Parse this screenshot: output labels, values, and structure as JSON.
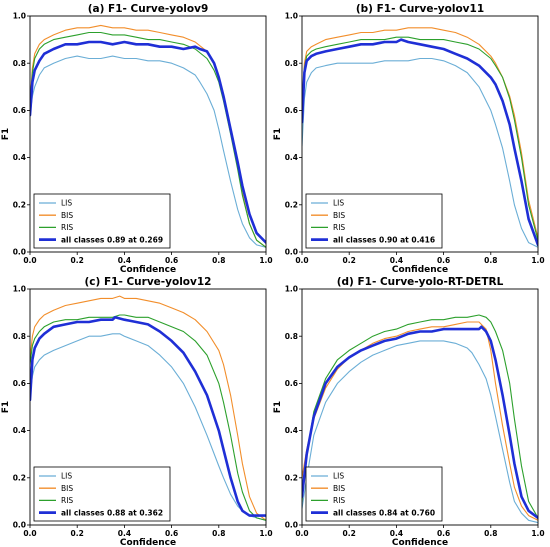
{
  "chart_data": [
    {
      "type": "line",
      "title": "(a) F1- Curve-yolov9",
      "xlabel": "Confidence",
      "ylabel": "F1",
      "xlim": [
        0,
        1
      ],
      "ylim": [
        0,
        1
      ],
      "xticks": [
        "0.0",
        "0.2",
        "0.4",
        "0.6",
        "0.8",
        "1.0"
      ],
      "yticks": [
        "0.0",
        "0.2",
        "0.4",
        "0.6",
        "0.8",
        "1.0"
      ],
      "legend_position": "lower-left",
      "series": [
        {
          "name": "LIS",
          "color": "#6baed6",
          "x": [
            0.0,
            0.01,
            0.02,
            0.04,
            0.06,
            0.1,
            0.15,
            0.2,
            0.25,
            0.3,
            0.35,
            0.4,
            0.45,
            0.5,
            0.55,
            0.6,
            0.65,
            0.7,
            0.72,
            0.75,
            0.78,
            0.8,
            0.82,
            0.85,
            0.88,
            0.9,
            0.93,
            0.96,
            1.0
          ],
          "y": [
            0.58,
            0.66,
            0.7,
            0.75,
            0.78,
            0.8,
            0.82,
            0.83,
            0.82,
            0.82,
            0.83,
            0.82,
            0.82,
            0.81,
            0.81,
            0.8,
            0.78,
            0.75,
            0.72,
            0.67,
            0.6,
            0.52,
            0.43,
            0.3,
            0.18,
            0.12,
            0.06,
            0.03,
            0.02
          ]
        },
        {
          "name": "BIS",
          "color": "#f28e2b",
          "x": [
            0.0,
            0.01,
            0.02,
            0.04,
            0.06,
            0.1,
            0.15,
            0.2,
            0.25,
            0.3,
            0.35,
            0.4,
            0.45,
            0.5,
            0.55,
            0.6,
            0.65,
            0.7,
            0.75,
            0.78,
            0.8,
            0.82,
            0.85,
            0.88,
            0.9,
            0.93,
            0.96,
            1.0
          ],
          "y": [
            0.63,
            0.78,
            0.84,
            0.88,
            0.9,
            0.92,
            0.94,
            0.95,
            0.95,
            0.96,
            0.95,
            0.95,
            0.94,
            0.94,
            0.93,
            0.92,
            0.91,
            0.89,
            0.85,
            0.8,
            0.74,
            0.66,
            0.52,
            0.36,
            0.25,
            0.12,
            0.05,
            0.02
          ]
        },
        {
          "name": "RIS",
          "color": "#2ca02c",
          "x": [
            0.0,
            0.01,
            0.02,
            0.04,
            0.06,
            0.1,
            0.15,
            0.2,
            0.25,
            0.3,
            0.35,
            0.4,
            0.45,
            0.5,
            0.55,
            0.6,
            0.65,
            0.7,
            0.75,
            0.78,
            0.8,
            0.82,
            0.85,
            0.88,
            0.9,
            0.93,
            0.96,
            1.0
          ],
          "y": [
            0.62,
            0.76,
            0.82,
            0.86,
            0.88,
            0.9,
            0.91,
            0.92,
            0.93,
            0.93,
            0.92,
            0.92,
            0.91,
            0.9,
            0.9,
            0.89,
            0.88,
            0.86,
            0.82,
            0.77,
            0.72,
            0.64,
            0.5,
            0.35,
            0.24,
            0.12,
            0.05,
            0.02
          ]
        },
        {
          "name": "all classes 0.89 at 0.269",
          "color": "#1f2fd6",
          "x": [
            0.0,
            0.01,
            0.02,
            0.04,
            0.06,
            0.1,
            0.15,
            0.2,
            0.25,
            0.3,
            0.35,
            0.4,
            0.45,
            0.5,
            0.55,
            0.6,
            0.65,
            0.7,
            0.72,
            0.75,
            0.78,
            0.8,
            0.82,
            0.85,
            0.88,
            0.9,
            0.93,
            0.96,
            1.0
          ],
          "y": [
            0.58,
            0.72,
            0.77,
            0.81,
            0.84,
            0.86,
            0.88,
            0.88,
            0.89,
            0.89,
            0.88,
            0.89,
            0.88,
            0.88,
            0.87,
            0.87,
            0.86,
            0.87,
            0.86,
            0.85,
            0.8,
            0.74,
            0.66,
            0.52,
            0.38,
            0.28,
            0.16,
            0.08,
            0.04
          ]
        }
      ]
    },
    {
      "type": "line",
      "title": "(b) F1- Curve-yolov11",
      "xlabel": "Confidence",
      "ylabel": "F1",
      "xlim": [
        0,
        1
      ],
      "ylim": [
        0,
        1
      ],
      "xticks": [
        "0.0",
        "0.2",
        "0.4",
        "0.6",
        "0.8",
        "1.0"
      ],
      "yticks": [
        "0.0",
        "0.2",
        "0.4",
        "0.6",
        "0.8",
        "1.0"
      ],
      "legend_position": "lower-left",
      "series": [
        {
          "name": "LIS",
          "color": "#6baed6",
          "x": [
            0.0,
            0.01,
            0.02,
            0.04,
            0.06,
            0.1,
            0.15,
            0.2,
            0.25,
            0.3,
            0.35,
            0.4,
            0.45,
            0.5,
            0.55,
            0.6,
            0.65,
            0.7,
            0.75,
            0.8,
            0.82,
            0.85,
            0.88,
            0.9,
            0.93,
            0.96,
            1.0
          ],
          "y": [
            0.45,
            0.65,
            0.72,
            0.76,
            0.78,
            0.79,
            0.8,
            0.8,
            0.8,
            0.8,
            0.81,
            0.81,
            0.81,
            0.82,
            0.82,
            0.81,
            0.79,
            0.76,
            0.7,
            0.6,
            0.54,
            0.44,
            0.3,
            0.2,
            0.1,
            0.04,
            0.02
          ]
        },
        {
          "name": "BIS",
          "color": "#f28e2b",
          "x": [
            0.0,
            0.01,
            0.02,
            0.04,
            0.06,
            0.1,
            0.15,
            0.2,
            0.25,
            0.3,
            0.35,
            0.4,
            0.45,
            0.5,
            0.55,
            0.6,
            0.65,
            0.7,
            0.75,
            0.8,
            0.82,
            0.85,
            0.88,
            0.9,
            0.93,
            0.96,
            1.0
          ],
          "y": [
            0.6,
            0.8,
            0.85,
            0.87,
            0.88,
            0.9,
            0.91,
            0.92,
            0.93,
            0.93,
            0.94,
            0.94,
            0.95,
            0.95,
            0.95,
            0.94,
            0.93,
            0.91,
            0.88,
            0.83,
            0.8,
            0.74,
            0.66,
            0.58,
            0.42,
            0.22,
            0.06
          ]
        },
        {
          "name": "RIS",
          "color": "#2ca02c",
          "x": [
            0.0,
            0.01,
            0.02,
            0.04,
            0.06,
            0.1,
            0.15,
            0.2,
            0.25,
            0.3,
            0.35,
            0.4,
            0.45,
            0.5,
            0.55,
            0.6,
            0.65,
            0.7,
            0.75,
            0.8,
            0.82,
            0.85,
            0.88,
            0.9,
            0.93,
            0.96,
            1.0
          ],
          "y": [
            0.58,
            0.78,
            0.83,
            0.85,
            0.86,
            0.87,
            0.88,
            0.89,
            0.9,
            0.9,
            0.9,
            0.91,
            0.91,
            0.9,
            0.9,
            0.9,
            0.89,
            0.88,
            0.86,
            0.82,
            0.79,
            0.74,
            0.65,
            0.56,
            0.4,
            0.2,
            0.05
          ]
        },
        {
          "name": "all classes 0.90 at 0.416",
          "color": "#1f2fd6",
          "x": [
            0.0,
            0.01,
            0.02,
            0.04,
            0.06,
            0.1,
            0.15,
            0.2,
            0.25,
            0.3,
            0.35,
            0.4,
            0.42,
            0.45,
            0.5,
            0.55,
            0.6,
            0.65,
            0.7,
            0.75,
            0.8,
            0.82,
            0.85,
            0.88,
            0.9,
            0.93,
            0.96,
            1.0
          ],
          "y": [
            0.55,
            0.76,
            0.81,
            0.83,
            0.84,
            0.85,
            0.86,
            0.87,
            0.88,
            0.88,
            0.89,
            0.89,
            0.9,
            0.89,
            0.88,
            0.87,
            0.86,
            0.84,
            0.82,
            0.79,
            0.74,
            0.71,
            0.64,
            0.54,
            0.44,
            0.3,
            0.14,
            0.03
          ]
        }
      ]
    },
    {
      "type": "line",
      "title": "(c) F1- Curve-yolov12",
      "xlabel": "Confidence",
      "ylabel": "F1",
      "xlim": [
        0,
        1
      ],
      "ylim": [
        0,
        1
      ],
      "xticks": [
        "0.0",
        "0.2",
        "0.4",
        "0.6",
        "0.8",
        "1.0"
      ],
      "yticks": [
        "0.0",
        "0.2",
        "0.4",
        "0.6",
        "0.8",
        "1.0"
      ],
      "legend_position": "lower-left",
      "series": [
        {
          "name": "LIS",
          "color": "#6baed6",
          "x": [
            0.0,
            0.01,
            0.02,
            0.04,
            0.06,
            0.1,
            0.15,
            0.2,
            0.25,
            0.3,
            0.35,
            0.38,
            0.4,
            0.45,
            0.5,
            0.55,
            0.6,
            0.65,
            0.7,
            0.75,
            0.8,
            0.82,
            0.85,
            0.88,
            0.9,
            0.93,
            0.96,
            1.0
          ],
          "y": [
            0.55,
            0.63,
            0.67,
            0.7,
            0.72,
            0.74,
            0.76,
            0.78,
            0.8,
            0.8,
            0.81,
            0.81,
            0.8,
            0.78,
            0.76,
            0.72,
            0.67,
            0.6,
            0.5,
            0.38,
            0.25,
            0.2,
            0.13,
            0.08,
            0.06,
            0.04,
            0.03,
            0.02
          ]
        },
        {
          "name": "BIS",
          "color": "#f28e2b",
          "x": [
            0.0,
            0.01,
            0.02,
            0.04,
            0.06,
            0.1,
            0.15,
            0.2,
            0.25,
            0.3,
            0.35,
            0.38,
            0.4,
            0.45,
            0.5,
            0.55,
            0.6,
            0.65,
            0.7,
            0.75,
            0.8,
            0.82,
            0.85,
            0.88,
            0.9,
            0.93,
            0.96,
            1.0
          ],
          "y": [
            0.7,
            0.8,
            0.84,
            0.87,
            0.89,
            0.91,
            0.93,
            0.94,
            0.95,
            0.96,
            0.96,
            0.97,
            0.96,
            0.96,
            0.95,
            0.94,
            0.92,
            0.9,
            0.87,
            0.82,
            0.74,
            0.68,
            0.55,
            0.38,
            0.26,
            0.12,
            0.05,
            0.02
          ]
        },
        {
          "name": "RIS",
          "color": "#2ca02c",
          "x": [
            0.0,
            0.01,
            0.02,
            0.04,
            0.06,
            0.1,
            0.15,
            0.2,
            0.25,
            0.3,
            0.35,
            0.38,
            0.4,
            0.45,
            0.5,
            0.55,
            0.6,
            0.65,
            0.7,
            0.75,
            0.8,
            0.82,
            0.85,
            0.88,
            0.9,
            0.93,
            0.96,
            1.0
          ],
          "y": [
            0.68,
            0.76,
            0.79,
            0.82,
            0.84,
            0.86,
            0.87,
            0.87,
            0.88,
            0.88,
            0.88,
            0.89,
            0.89,
            0.88,
            0.88,
            0.86,
            0.84,
            0.82,
            0.78,
            0.72,
            0.6,
            0.52,
            0.38,
            0.22,
            0.14,
            0.06,
            0.03,
            0.02
          ]
        },
        {
          "name": "all classes 0.88 at 0.362",
          "color": "#1f2fd6",
          "x": [
            0.0,
            0.01,
            0.02,
            0.04,
            0.06,
            0.1,
            0.15,
            0.2,
            0.25,
            0.3,
            0.35,
            0.36,
            0.4,
            0.45,
            0.5,
            0.55,
            0.6,
            0.65,
            0.7,
            0.75,
            0.8,
            0.82,
            0.85,
            0.88,
            0.9,
            0.93,
            0.96,
            1.0
          ],
          "y": [
            0.53,
            0.7,
            0.75,
            0.79,
            0.81,
            0.84,
            0.85,
            0.86,
            0.86,
            0.87,
            0.87,
            0.88,
            0.87,
            0.86,
            0.85,
            0.82,
            0.78,
            0.73,
            0.65,
            0.55,
            0.4,
            0.32,
            0.2,
            0.1,
            0.06,
            0.04,
            0.04,
            0.04
          ]
        }
      ]
    },
    {
      "type": "line",
      "title": "(d) F1- Curve-yolo-RT-DETRL",
      "xlabel": "Confidence",
      "ylabel": "F1",
      "xlim": [
        0,
        1
      ],
      "ylim": [
        0,
        1
      ],
      "xticks": [
        "0.0",
        "0.2",
        "0.4",
        "0.6",
        "0.8",
        "1.0"
      ],
      "yticks": [
        "0.0",
        "0.2",
        "0.4",
        "0.6",
        "0.8",
        "1.0"
      ],
      "legend_position": "lower-left",
      "series": [
        {
          "name": "LIS",
          "color": "#6baed6",
          "x": [
            0.0,
            0.02,
            0.05,
            0.1,
            0.15,
            0.2,
            0.25,
            0.3,
            0.35,
            0.4,
            0.45,
            0.5,
            0.55,
            0.6,
            0.65,
            0.7,
            0.72,
            0.75,
            0.78,
            0.8,
            0.82,
            0.85,
            0.88,
            0.9,
            0.93,
            0.96,
            1.0
          ],
          "y": [
            0.07,
            0.2,
            0.38,
            0.52,
            0.6,
            0.65,
            0.69,
            0.72,
            0.74,
            0.76,
            0.77,
            0.78,
            0.78,
            0.78,
            0.77,
            0.75,
            0.73,
            0.68,
            0.62,
            0.55,
            0.46,
            0.32,
            0.18,
            0.1,
            0.05,
            0.02,
            0.01
          ]
        },
        {
          "name": "BIS",
          "color": "#f28e2b",
          "x": [
            0.0,
            0.02,
            0.05,
            0.1,
            0.15,
            0.2,
            0.25,
            0.3,
            0.35,
            0.4,
            0.45,
            0.5,
            0.55,
            0.6,
            0.65,
            0.7,
            0.75,
            0.78,
            0.8,
            0.82,
            0.85,
            0.88,
            0.9,
            0.93,
            0.96,
            1.0
          ],
          "y": [
            0.2,
            0.32,
            0.45,
            0.58,
            0.66,
            0.71,
            0.74,
            0.77,
            0.79,
            0.8,
            0.82,
            0.83,
            0.84,
            0.84,
            0.85,
            0.86,
            0.86,
            0.83,
            0.74,
            0.6,
            0.42,
            0.26,
            0.16,
            0.08,
            0.04,
            0.02
          ]
        },
        {
          "name": "RIS",
          "color": "#2ca02c",
          "x": [
            0.0,
            0.02,
            0.05,
            0.1,
            0.15,
            0.2,
            0.25,
            0.3,
            0.35,
            0.4,
            0.45,
            0.5,
            0.55,
            0.6,
            0.65,
            0.7,
            0.75,
            0.78,
            0.8,
            0.82,
            0.85,
            0.88,
            0.9,
            0.93,
            0.96,
            1.0
          ],
          "y": [
            0.1,
            0.3,
            0.48,
            0.62,
            0.7,
            0.74,
            0.77,
            0.8,
            0.82,
            0.83,
            0.85,
            0.86,
            0.87,
            0.87,
            0.88,
            0.88,
            0.89,
            0.88,
            0.86,
            0.82,
            0.74,
            0.6,
            0.45,
            0.25,
            0.1,
            0.03
          ]
        },
        {
          "name": "all classes 0.84 at 0.760",
          "color": "#1f2fd6",
          "x": [
            0.0,
            0.02,
            0.05,
            0.1,
            0.15,
            0.2,
            0.25,
            0.3,
            0.35,
            0.4,
            0.45,
            0.5,
            0.55,
            0.6,
            0.65,
            0.7,
            0.75,
            0.76,
            0.78,
            0.8,
            0.82,
            0.85,
            0.88,
            0.9,
            0.93,
            0.96,
            1.0
          ],
          "y": [
            0.12,
            0.3,
            0.46,
            0.6,
            0.67,
            0.71,
            0.74,
            0.76,
            0.78,
            0.79,
            0.81,
            0.82,
            0.82,
            0.83,
            0.83,
            0.83,
            0.83,
            0.84,
            0.82,
            0.78,
            0.7,
            0.55,
            0.38,
            0.26,
            0.12,
            0.06,
            0.03
          ]
        }
      ]
    }
  ]
}
